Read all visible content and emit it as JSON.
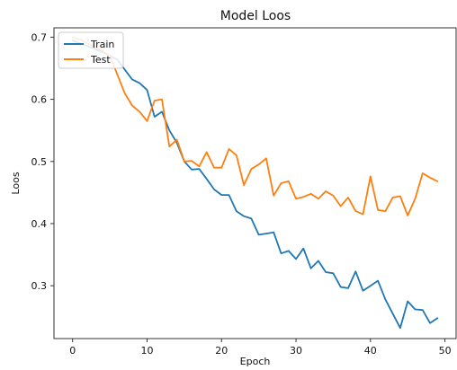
{
  "chart_data": {
    "type": "line",
    "title": "Model Loos",
    "xlabel": "Epoch",
    "ylabel": "Loos",
    "xlim": [
      -2.5,
      51.5
    ],
    "ylim": [
      0.215,
      0.715
    ],
    "x_ticks": [
      0,
      10,
      20,
      30,
      40,
      50
    ],
    "y_ticks": [
      0.3,
      0.4,
      0.5,
      0.6,
      0.7
    ],
    "grid": false,
    "legend": {
      "placement": "top-left",
      "entries": [
        "Train",
        "Test"
      ]
    },
    "x": [
      0,
      1,
      2,
      3,
      4,
      5,
      6,
      7,
      8,
      9,
      10,
      11,
      12,
      13,
      14,
      15,
      16,
      17,
      18,
      19,
      20,
      21,
      22,
      23,
      24,
      25,
      26,
      27,
      28,
      29,
      30,
      31,
      32,
      33,
      34,
      35,
      36,
      37,
      38,
      39,
      40,
      41,
      42,
      43,
      44,
      45,
      46,
      47,
      48,
      49
    ],
    "series": [
      {
        "name": "Train",
        "color": "#1f77b4",
        "values": [
          0.695,
          0.69,
          0.686,
          0.681,
          0.676,
          0.67,
          0.664,
          0.648,
          0.632,
          0.626,
          0.615,
          0.572,
          0.58,
          0.55,
          0.53,
          0.5,
          0.487,
          0.488,
          0.472,
          0.455,
          0.446,
          0.446,
          0.42,
          0.412,
          0.408,
          0.382,
          0.384,
          0.386,
          0.352,
          0.356,
          0.343,
          0.36,
          0.328,
          0.34,
          0.322,
          0.32,
          0.298,
          0.296,
          0.323,
          0.292,
          0.3,
          0.308,
          0.278,
          0.255,
          0.232,
          0.275,
          0.262,
          0.261,
          0.24,
          0.248
        ]
      },
      {
        "name": "Test",
        "color": "#ff7f0e",
        "values": [
          0.7,
          0.696,
          0.69,
          0.684,
          0.678,
          0.67,
          0.64,
          0.61,
          0.59,
          0.58,
          0.565,
          0.598,
          0.6,
          0.524,
          0.535,
          0.5,
          0.501,
          0.492,
          0.515,
          0.49,
          0.49,
          0.52,
          0.51,
          0.462,
          0.488,
          0.495,
          0.505,
          0.445,
          0.465,
          0.468,
          0.44,
          0.443,
          0.448,
          0.44,
          0.452,
          0.445,
          0.428,
          0.442,
          0.42,
          0.415,
          0.476,
          0.422,
          0.42,
          0.442,
          0.444,
          0.413,
          0.44,
          0.481,
          0.474,
          0.468
        ]
      }
    ]
  }
}
